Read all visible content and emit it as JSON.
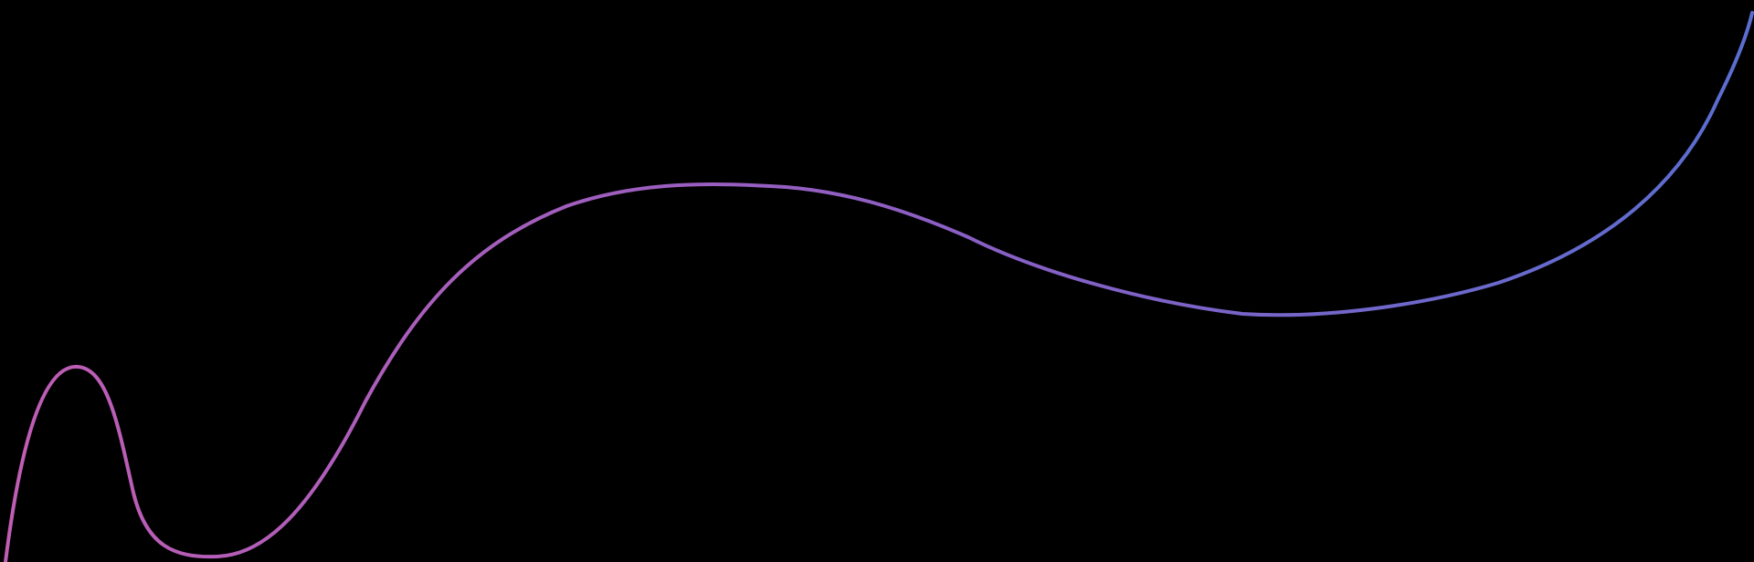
{
  "colors": {
    "background": "#000000",
    "curve_start": "#c15db4",
    "curve_mid": "#8a5fc4",
    "curve_end": "#5a6ed0"
  }
}
